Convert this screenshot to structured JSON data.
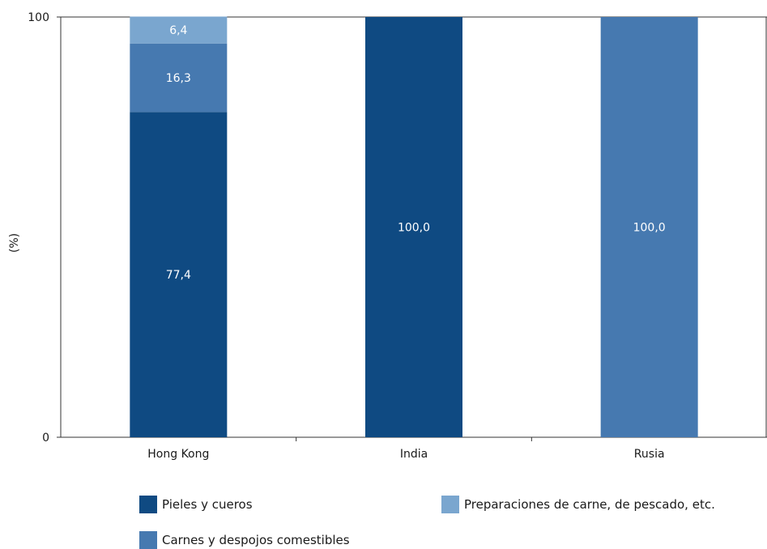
{
  "chart_data": {
    "type": "bar",
    "stacked": true,
    "ylabel": "(%)",
    "xlabel": "",
    "ylim": [
      0,
      100
    ],
    "yticks": [
      "0",
      "100"
    ],
    "categories": [
      "Hong Kong",
      "India",
      "Rusia"
    ],
    "series": [
      {
        "name": "Pieles y cueros",
        "color": "#0f4a82",
        "values": [
          77.4,
          100.0,
          0
        ],
        "labels": [
          "77,4",
          "100,0",
          ""
        ]
      },
      {
        "name": "Carnes y despojos comestibles",
        "color": "#4679b0",
        "values": [
          16.3,
          0,
          100.0
        ],
        "labels": [
          "16,3",
          "",
          "100,0"
        ]
      },
      {
        "name": "Preparaciones de carne, de pescado, etc.",
        "color": "#7aa6cf",
        "values": [
          6.4,
          0,
          0
        ],
        "labels": [
          "6,4",
          "",
          ""
        ]
      }
    ],
    "legend_placement": "bottom"
  }
}
